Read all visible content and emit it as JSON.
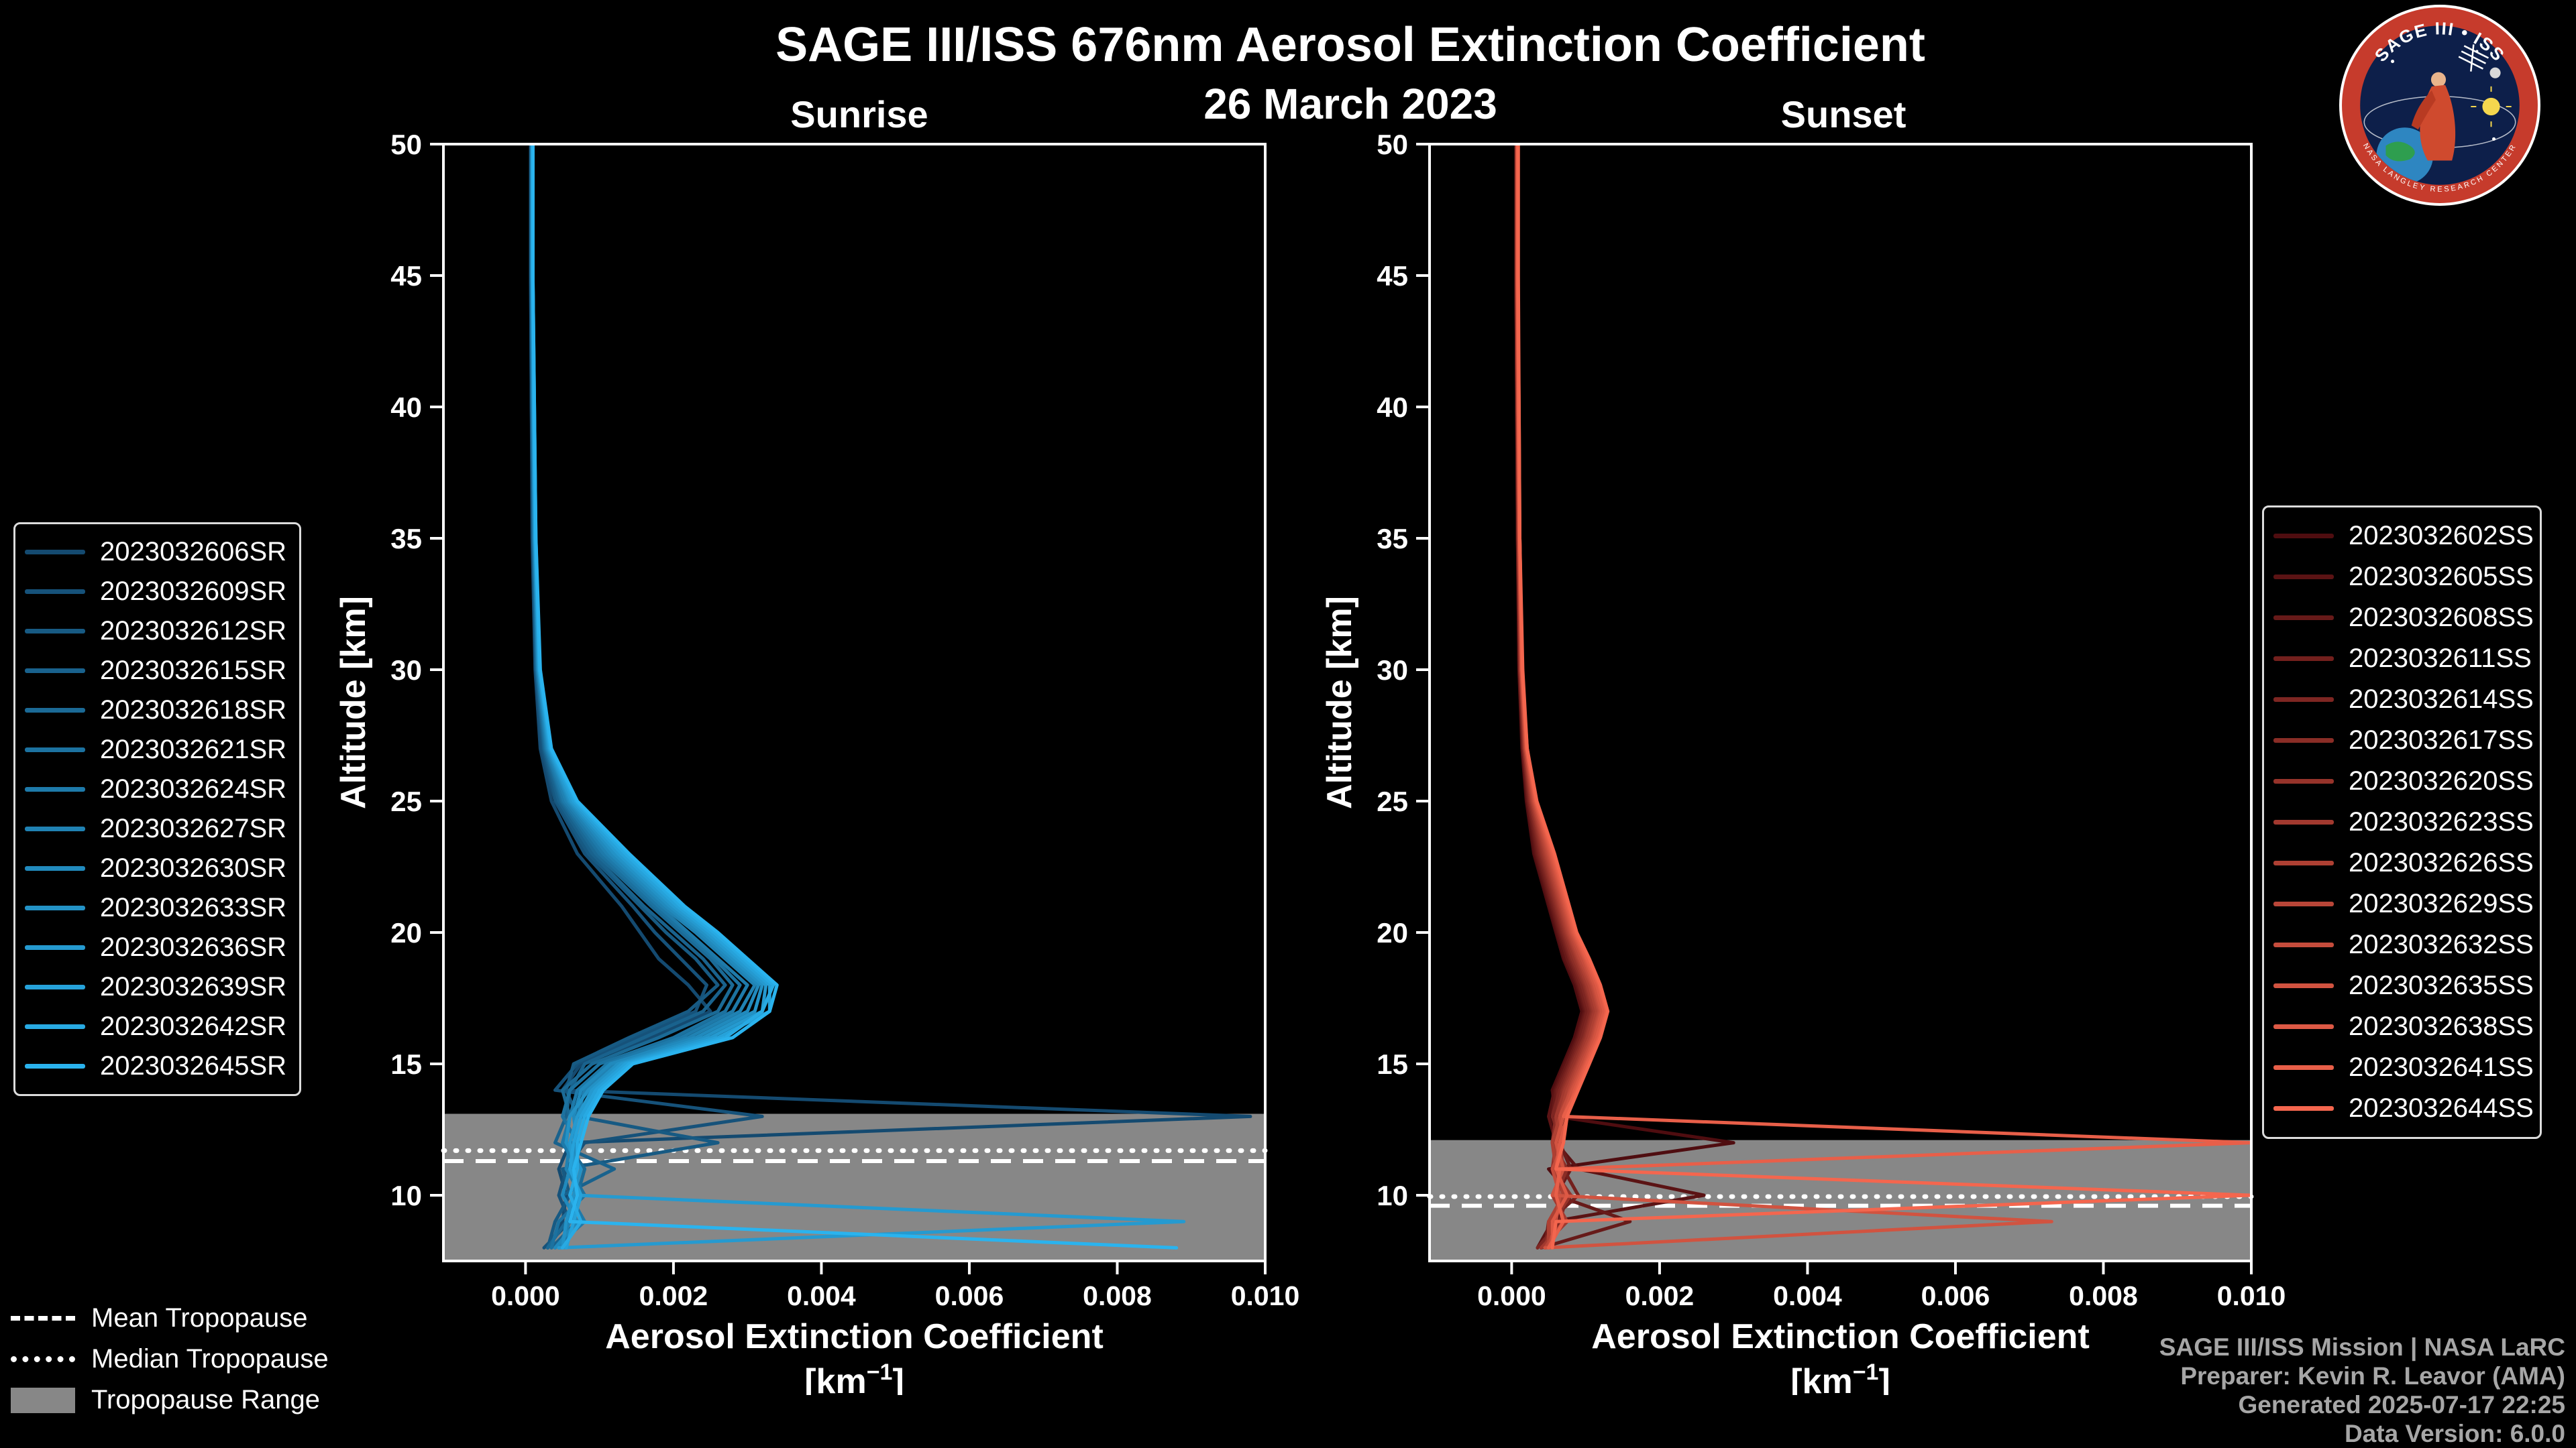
{
  "page": {
    "title": "SAGE III/ISS 676nm Aerosol Extinction Coefficient",
    "date": "26 March 2023",
    "background": "#000000",
    "text_color": "#ffffff"
  },
  "chart_data": [
    {
      "type": "line",
      "title": "Sunrise",
      "xlabel": "Aerosol Extinction Coefficient",
      "xlabel_units": {
        "pre": "[km",
        "sup": "−1",
        "post": "]"
      },
      "ylabel": "Altitude [km]",
      "xlim": [
        -0.00111,
        0.01
      ],
      "ylim": [
        7.5,
        50
      ],
      "xticks": [
        0,
        0.002,
        0.004,
        0.006,
        0.008,
        0.01
      ],
      "xtick_labels": [
        "0.000",
        "0.002",
        "0.004",
        "0.006",
        "0.008",
        "0.010"
      ],
      "yticks": [
        10,
        15,
        20,
        25,
        30,
        35,
        40,
        45,
        50
      ],
      "grid": false,
      "legend_position": "outside-left",
      "value_scale": 0.001,
      "values_unit": "1e-3 km^-1",
      "altitudes_km": [
        50,
        45,
        40,
        35,
        30,
        27,
        25,
        23,
        21,
        20,
        19,
        18,
        17,
        16,
        15,
        14,
        13,
        12,
        11,
        10,
        9,
        8
      ],
      "series": [
        {
          "label": "2023032606SR",
          "color": "#144a70",
          "values": [
            0.07,
            0.07,
            0.08,
            0.09,
            0.13,
            0.2,
            0.35,
            0.7,
            1.3,
            1.55,
            1.8,
            2.2,
            2.5,
            1.7,
            0.75,
            0.5,
            9.8,
            0.6,
            0.45,
            0.55,
            0.5,
            0.3
          ]
        },
        {
          "label": "2023032609SR",
          "color": "#16527a",
          "values": [
            0.07,
            0.07,
            0.08,
            0.1,
            0.14,
            0.22,
            0.4,
            0.8,
            1.45,
            1.75,
            2.1,
            2.45,
            2.3,
            1.5,
            0.7,
            0.4,
            3.2,
            0.8,
            0.55,
            0.45,
            0.6,
            0.25
          ]
        },
        {
          "label": "2023032612SR",
          "color": "#175a83",
          "values": [
            0.08,
            0.08,
            0.09,
            0.1,
            0.14,
            0.24,
            0.42,
            0.85,
            1.55,
            1.9,
            2.3,
            2.6,
            2.2,
            1.4,
            0.65,
            0.55,
            0.7,
            2.6,
            0.5,
            0.6,
            0.4,
            0.3
          ]
        },
        {
          "label": "2023032615SR",
          "color": "#19628d",
          "values": [
            0.08,
            0.08,
            0.09,
            0.11,
            0.15,
            0.25,
            0.45,
            0.9,
            1.6,
            2.0,
            2.4,
            2.7,
            2.4,
            1.6,
            0.8,
            0.6,
            0.55,
            0.4,
            1.2,
            0.5,
            0.7,
            0.35
          ]
        },
        {
          "label": "2023032618SR",
          "color": "#1b6a96",
          "values": [
            0.08,
            0.08,
            0.09,
            0.11,
            0.15,
            0.26,
            0.48,
            0.95,
            1.7,
            2.1,
            2.5,
            2.8,
            2.6,
            1.8,
            0.9,
            0.5,
            0.6,
            0.55,
            0.8,
            0.7,
            0.55,
            0.3
          ]
        },
        {
          "label": "2023032621SR",
          "color": "#1c72a0",
          "values": [
            0.08,
            0.08,
            0.1,
            0.11,
            0.16,
            0.27,
            0.5,
            1.0,
            1.75,
            2.15,
            2.55,
            2.9,
            2.7,
            2.0,
            1.0,
            0.6,
            0.5,
            0.7,
            0.6,
            0.8,
            0.45,
            0.35
          ]
        },
        {
          "label": "2023032624SR",
          "color": "#1e7aaa",
          "values": [
            0.09,
            0.09,
            0.1,
            0.12,
            0.16,
            0.28,
            0.52,
            1.05,
            1.8,
            2.2,
            2.6,
            3.0,
            2.8,
            2.1,
            1.1,
            0.7,
            0.6,
            0.5,
            0.7,
            0.6,
            0.8,
            0.4
          ]
        },
        {
          "label": "2023032627SR",
          "color": "#2082b3",
          "values": [
            0.09,
            0.09,
            0.1,
            0.12,
            0.17,
            0.29,
            0.55,
            1.1,
            1.85,
            2.3,
            2.7,
            3.1,
            2.9,
            2.2,
            1.2,
            0.8,
            0.7,
            0.6,
            0.55,
            0.75,
            0.6,
            0.45
          ]
        },
        {
          "label": "2023032630SR",
          "color": "#218abd",
          "values": [
            0.09,
            0.09,
            0.1,
            0.12,
            0.17,
            0.3,
            0.58,
            1.15,
            1.9,
            2.35,
            2.75,
            3.15,
            3.0,
            2.3,
            1.15,
            0.75,
            0.65,
            0.7,
            0.6,
            0.5,
            0.7,
            0.4
          ]
        },
        {
          "label": "2023032633SR",
          "color": "#2392c6",
          "values": [
            0.09,
            0.09,
            0.11,
            0.13,
            0.18,
            0.31,
            0.6,
            1.2,
            1.95,
            2.4,
            2.8,
            3.2,
            3.1,
            2.4,
            1.25,
            0.85,
            0.6,
            0.55,
            0.75,
            0.65,
            0.55,
            0.5
          ]
        },
        {
          "label": "2023032636SR",
          "color": "#259ad0",
          "values": [
            0.1,
            0.1,
            0.11,
            0.13,
            0.18,
            0.32,
            0.62,
            1.25,
            2.0,
            2.45,
            2.85,
            3.25,
            3.2,
            2.5,
            1.3,
            0.9,
            0.7,
            0.6,
            0.65,
            0.7,
            8.9,
            0.45
          ]
        },
        {
          "label": "2023032639SR",
          "color": "#26a2da",
          "values": [
            0.1,
            0.1,
            0.11,
            0.13,
            0.19,
            0.33,
            0.65,
            1.3,
            2.05,
            2.5,
            2.9,
            3.3,
            3.3,
            2.6,
            1.35,
            0.95,
            0.75,
            0.65,
            0.6,
            0.75,
            0.65,
            0.55
          ]
        },
        {
          "label": "2023032642SR",
          "color": "#28aae3",
          "values": [
            0.1,
            0.1,
            0.12,
            0.14,
            0.19,
            0.34,
            0.68,
            1.35,
            2.1,
            2.55,
            2.95,
            3.35,
            3.2,
            2.7,
            1.4,
            1.0,
            0.8,
            0.7,
            0.7,
            0.6,
            0.75,
            0.5
          ]
        },
        {
          "label": "2023032645SR",
          "color": "#2ab3ee",
          "values": [
            0.1,
            0.1,
            0.12,
            0.14,
            0.2,
            0.35,
            0.7,
            1.4,
            2.15,
            2.6,
            3.0,
            3.4,
            3.3,
            2.8,
            1.45,
            1.05,
            0.85,
            0.75,
            0.65,
            0.7,
            0.6,
            8.8
          ]
        }
      ],
      "tropopause": {
        "band_top_km": 13.1,
        "band_bottom_km": 7.5,
        "mean_km": 11.3,
        "median_km": 11.7,
        "band_color": "#878787"
      }
    },
    {
      "type": "line",
      "title": "Sunset",
      "xlabel": "Aerosol Extinction Coefficient",
      "xlabel_units": {
        "pre": "[km",
        "sup": "−1",
        "post": "]"
      },
      "ylabel": "Altitude [km]",
      "xlim": [
        -0.00111,
        0.01
      ],
      "ylim": [
        7.5,
        50
      ],
      "xticks": [
        0,
        0.002,
        0.004,
        0.006,
        0.008,
        0.01
      ],
      "xtick_labels": [
        "0.000",
        "0.002",
        "0.004",
        "0.006",
        "0.008",
        "0.010"
      ],
      "yticks": [
        10,
        15,
        20,
        25,
        30,
        35,
        40,
        45,
        50
      ],
      "grid": false,
      "legend_position": "outside-right",
      "value_scale": 0.001,
      "values_unit": "1e-3 km^-1",
      "altitudes_km": [
        50,
        45,
        40,
        35,
        30,
        27,
        25,
        23,
        21,
        20,
        19,
        18,
        17,
        16,
        15,
        14,
        13,
        12,
        11,
        10,
        9,
        8
      ],
      "series": [
        {
          "label": "2023032602SS",
          "color": "#4f0d10",
          "values": [
            0.06,
            0.06,
            0.07,
            0.08,
            0.1,
            0.14,
            0.2,
            0.3,
            0.5,
            0.6,
            0.7,
            0.85,
            0.95,
            0.85,
            0.7,
            0.55,
            0.6,
            3.0,
            0.5,
            0.8,
            0.6,
            0.4
          ]
        },
        {
          "label": "2023032605SS",
          "color": "#5b1314",
          "values": [
            0.06,
            0.06,
            0.07,
            0.08,
            0.1,
            0.15,
            0.21,
            0.32,
            0.52,
            0.62,
            0.72,
            0.88,
            0.98,
            0.88,
            0.72,
            0.58,
            0.5,
            0.6,
            0.9,
            2.6,
            0.55,
            0.35
          ]
        },
        {
          "label": "2023032608SS",
          "color": "#671a19",
          "values": [
            0.06,
            0.06,
            0.07,
            0.08,
            0.11,
            0.15,
            0.22,
            0.34,
            0.54,
            0.64,
            0.75,
            0.9,
            1.0,
            0.9,
            0.75,
            0.6,
            0.55,
            0.65,
            0.8,
            0.6,
            1.6,
            0.4
          ]
        },
        {
          "label": "2023032611SS",
          "color": "#73201d",
          "values": [
            0.06,
            0.06,
            0.07,
            0.09,
            0.11,
            0.16,
            0.23,
            0.36,
            0.56,
            0.66,
            0.78,
            0.92,
            1.02,
            0.92,
            0.78,
            0.62,
            0.6,
            0.55,
            0.7,
            0.9,
            0.5,
            0.45
          ]
        },
        {
          "label": "2023032614SS",
          "color": "#7e2622",
          "values": [
            0.07,
            0.07,
            0.08,
            0.09,
            0.11,
            0.16,
            0.24,
            0.38,
            0.58,
            0.68,
            0.8,
            0.95,
            1.05,
            0.95,
            0.8,
            0.65,
            0.55,
            0.7,
            0.6,
            0.75,
            0.65,
            0.35
          ]
        },
        {
          "label": "2023032617SS",
          "color": "#8a2d26",
          "values": [
            0.07,
            0.07,
            0.08,
            0.09,
            0.12,
            0.17,
            0.25,
            0.4,
            0.6,
            0.7,
            0.82,
            0.98,
            1.08,
            0.98,
            0.82,
            0.68,
            0.6,
            0.55,
            0.75,
            0.6,
            0.7,
            0.4
          ]
        },
        {
          "label": "2023032620SS",
          "color": "#96332a",
          "values": [
            0.07,
            0.07,
            0.08,
            0.09,
            0.12,
            0.17,
            0.26,
            0.42,
            0.62,
            0.72,
            0.85,
            1.0,
            1.1,
            1.0,
            0.85,
            0.7,
            0.65,
            0.6,
            0.55,
            0.8,
            0.55,
            0.45
          ]
        },
        {
          "label": "2023032623SS",
          "color": "#a2392f",
          "values": [
            0.07,
            0.07,
            0.08,
            0.1,
            0.12,
            0.18,
            0.27,
            0.44,
            0.64,
            0.74,
            0.88,
            1.02,
            1.12,
            1.02,
            0.88,
            0.72,
            0.6,
            0.65,
            0.7,
            0.55,
            0.75,
            0.4
          ]
        },
        {
          "label": "2023032626SS",
          "color": "#ae4033",
          "values": [
            0.07,
            0.07,
            0.08,
            0.1,
            0.13,
            0.18,
            0.28,
            0.46,
            0.66,
            0.76,
            0.9,
            1.05,
            1.15,
            1.05,
            0.9,
            0.75,
            0.65,
            0.55,
            0.6,
            0.7,
            0.5,
            0.5
          ]
        },
        {
          "label": "2023032629SS",
          "color": "#b94638",
          "values": [
            0.08,
            0.08,
            0.09,
            0.1,
            0.13,
            0.19,
            0.29,
            0.48,
            0.68,
            0.78,
            0.92,
            1.08,
            1.18,
            1.08,
            0.92,
            0.78,
            0.7,
            0.6,
            0.65,
            0.6,
            0.7,
            0.45
          ]
        },
        {
          "label": "2023032632SS",
          "color": "#c54c3c",
          "values": [
            0.08,
            0.08,
            0.09,
            0.1,
            0.13,
            0.19,
            0.3,
            0.5,
            0.7,
            0.8,
            0.95,
            1.1,
            1.2,
            1.1,
            0.95,
            0.8,
            0.65,
            0.7,
            0.55,
            0.65,
            0.6,
            0.5
          ]
        },
        {
          "label": "2023032635SS",
          "color": "#d15340",
          "values": [
            0.08,
            0.08,
            0.09,
            0.11,
            0.14,
            0.2,
            0.31,
            0.52,
            0.72,
            0.82,
            0.98,
            1.12,
            1.22,
            1.12,
            0.98,
            0.82,
            0.7,
            0.6,
            0.7,
            0.55,
            7.3,
            0.45
          ]
        },
        {
          "label": "2023032638SS",
          "color": "#dd5945",
          "values": [
            0.08,
            0.08,
            0.09,
            0.11,
            0.14,
            0.2,
            0.32,
            0.54,
            0.74,
            0.84,
            1.0,
            1.15,
            1.25,
            1.15,
            1.0,
            0.85,
            0.75,
            0.65,
            0.6,
            0.75,
            0.55,
            0.55
          ]
        },
        {
          "label": "2023032641SS",
          "color": "#e85f49",
          "values": [
            0.08,
            0.08,
            0.1,
            0.11,
            0.14,
            0.21,
            0.33,
            0.56,
            0.76,
            0.86,
            1.02,
            1.18,
            1.28,
            1.18,
            1.02,
            0.88,
            0.7,
            10.0,
            0.65,
            0.6,
            0.7,
            0.5
          ]
        },
        {
          "label": "2023032644SS",
          "color": "#f4664e",
          "values": [
            0.09,
            0.09,
            0.1,
            0.11,
            0.15,
            0.21,
            0.34,
            0.58,
            0.78,
            0.88,
            1.05,
            1.2,
            1.3,
            1.2,
            1.05,
            0.9,
            0.75,
            0.7,
            0.6,
            10.0,
            0.6,
            0.55
          ]
        }
      ],
      "tropopause": {
        "band_top_km": 12.1,
        "band_bottom_km": 7.5,
        "mean_km": 9.6,
        "median_km": 9.95,
        "band_color": "#878787"
      }
    }
  ],
  "annotations": {
    "items": [
      {
        "label": "Mean Tropopause",
        "style": "dashed"
      },
      {
        "label": "Median Tropopause",
        "style": "dotted"
      },
      {
        "label": "Tropopause Range",
        "style": "patch"
      }
    ]
  },
  "credits": {
    "lines": [
      "SAGE III/ISS Mission | NASA LaRC",
      "Preparer: Kevin R. Leavor (AMA)",
      "Generated 2025-07-17 22:25",
      "Data Version: 6.0.0"
    ]
  },
  "logo": {
    "title_top": "SAGE III • ISS",
    "ring_text": "NASA LANGLEY RESEARCH CENTER"
  }
}
